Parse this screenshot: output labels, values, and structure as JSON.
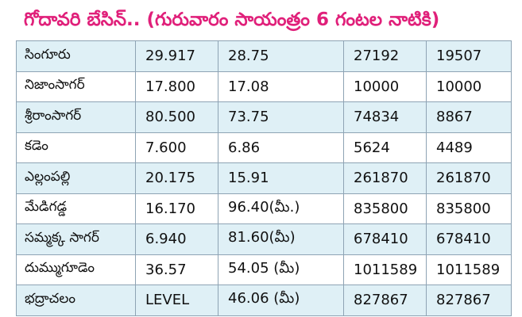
{
  "title": "గోదావరి బేసిన్.. (గురువారం సాయంత్రం 6 గంటల నాటికి)",
  "rows": [
    [
      "సింగూరు",
      "29.917",
      "28.75",
      "27192",
      "19507"
    ],
    [
      "నిజాంసాగర్",
      "17.800",
      "17.08",
      "10000",
      "10000"
    ],
    [
      "శ్రీరాంసాగర్",
      "80.500",
      "73.75",
      "74834",
      "8867"
    ],
    [
      "కడెం",
      "7.600",
      "6.86",
      "5624",
      "4489"
    ],
    [
      "ఎల్లంపల్లి",
      "20.175",
      "15.91",
      "261870",
      "261870"
    ],
    [
      "మేడిగడ్డ",
      "16.170",
      "96.40(మీ.)",
      "835800",
      "835800"
    ],
    [
      "సమ్మక్క సాగర్",
      "6.940",
      "81.60(మీ)",
      "678410",
      "678410"
    ],
    [
      "దుమ్ముగూడెం",
      "36.57",
      "54.05 (మీ)",
      "1011589",
      "1011589"
    ],
    [
      "భద్రాచలం",
      "LEVEL",
      "46.06 (మీ)",
      "827867",
      "827867"
    ]
  ]
}
